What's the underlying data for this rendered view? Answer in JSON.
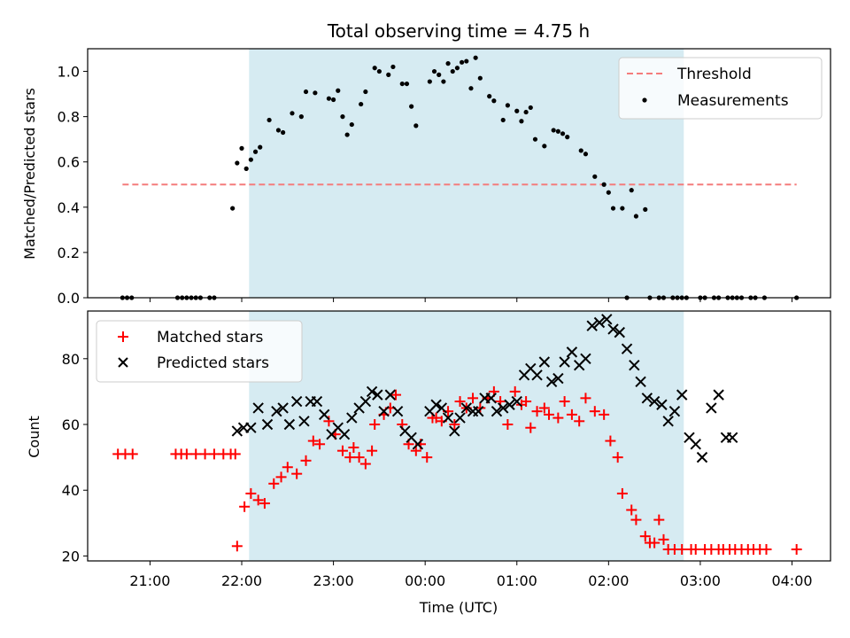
{
  "chart_data": [
    {
      "type": "scatter",
      "title": "Total observing time = 4.75 h",
      "ylabel": "Matched/Predicted stars",
      "xlabel": "",
      "x_unit": "hours since 00:00 UTC",
      "xlim": [
        -3.68,
        4.42
      ],
      "ylim": [
        0.0,
        1.1
      ],
      "yticks": [
        0.0,
        0.2,
        0.4,
        0.6,
        0.8,
        1.0
      ],
      "ytick_labels": [
        "0.0",
        "0.2",
        "0.4",
        "0.6",
        "0.8",
        "1.0"
      ],
      "grid": false,
      "legend_position": "top-right",
      "observing_window": [
        -1.92,
        2.82
      ],
      "threshold": {
        "name": "Threshold",
        "value": 0.5,
        "x_range": [
          -3.3,
          4.05
        ],
        "color": "#f47c7c"
      },
      "series": [
        {
          "name": "Measurements",
          "color": "#000000",
          "marker": "dot",
          "x": [
            -3.3,
            -3.25,
            -3.2,
            -2.7,
            -2.65,
            -2.6,
            -2.55,
            -2.5,
            -2.45,
            -2.35,
            -2.3,
            -2.1,
            -2.05,
            -2.0,
            -1.95,
            -1.9,
            -1.85,
            -1.8,
            -1.7,
            -1.6,
            -1.55,
            -1.45,
            -1.35,
            -1.3,
            -1.2,
            -1.05,
            -1.0,
            -0.95,
            -0.9,
            -0.85,
            -0.8,
            -0.7,
            -0.65,
            -0.55,
            -0.5,
            -0.4,
            -0.35,
            -0.25,
            -0.2,
            -0.15,
            -0.1,
            0.05,
            0.1,
            0.15,
            0.2,
            0.25,
            0.3,
            0.35,
            0.4,
            0.45,
            0.5,
            0.55,
            0.6,
            0.7,
            0.75,
            0.85,
            0.9,
            1.0,
            1.05,
            1.1,
            1.15,
            1.2,
            1.3,
            1.4,
            1.45,
            1.5,
            1.55,
            1.7,
            1.75,
            1.85,
            1.95,
            2.0,
            2.05,
            2.15,
            2.2,
            2.25,
            2.3,
            2.4,
            2.45,
            2.55,
            2.6,
            2.7,
            2.75,
            2.8,
            2.85,
            3.0,
            3.05,
            3.15,
            3.2,
            3.3,
            3.35,
            3.4,
            3.45,
            3.55,
            3.6,
            3.7,
            4.05
          ],
          "y": [
            0.0,
            0.0,
            0.0,
            0.0,
            0.0,
            0.0,
            0.0,
            0.0,
            0.0,
            0.0,
            0.0,
            0.395,
            0.595,
            0.66,
            0.57,
            0.61,
            0.645,
            0.665,
            0.785,
            0.74,
            0.73,
            0.815,
            0.8,
            0.91,
            0.905,
            0.88,
            0.875,
            0.915,
            0.8,
            0.72,
            0.765,
            0.855,
            0.91,
            1.015,
            1.0,
            0.985,
            1.02,
            0.945,
            0.945,
            0.845,
            0.76,
            0.955,
            1.0,
            0.985,
            0.955,
            1.035,
            1.0,
            1.015,
            1.04,
            1.045,
            0.925,
            1.06,
            0.97,
            0.89,
            0.87,
            0.785,
            0.85,
            0.825,
            0.78,
            0.82,
            0.84,
            0.7,
            0.67,
            0.74,
            0.735,
            0.725,
            0.71,
            0.65,
            0.635,
            0.535,
            0.5,
            0.465,
            0.395,
            0.395,
            0.0,
            0.475,
            0.36,
            0.39,
            0.0,
            0.0,
            0.0,
            0.0,
            0.0,
            0.0,
            0.0,
            0.0,
            0.0,
            0.0,
            0.0,
            0.0,
            0.0,
            0.0,
            0.0,
            0.0,
            0.0,
            0.0,
            0.0
          ]
        }
      ]
    },
    {
      "type": "scatter",
      "title": "",
      "ylabel": "Count",
      "xlabel": "Time (UTC)",
      "x_unit": "hours since 00:00 UTC",
      "xlim": [
        -3.68,
        4.42
      ],
      "ylim": [
        18.5,
        94.5
      ],
      "yticks": [
        20,
        40,
        60,
        80
      ],
      "ytick_labels": [
        "20",
        "40",
        "60",
        "80"
      ],
      "xticks": [
        -3,
        -2,
        -1,
        0,
        1,
        2,
        3,
        4
      ],
      "xtick_labels": [
        "21:00",
        "22:00",
        "23:00",
        "00:00",
        "01:00",
        "02:00",
        "03:00",
        "04:00"
      ],
      "grid": false,
      "legend_position": "top-left",
      "observing_window": [
        -1.92,
        2.82
      ],
      "series": [
        {
          "name": "Matched stars",
          "color": "#ff0000",
          "marker": "plus",
          "x": [
            -3.35,
            -3.27,
            -3.19,
            -2.72,
            -2.66,
            -2.6,
            -2.5,
            -2.4,
            -2.3,
            -2.2,
            -2.12,
            -2.07,
            -2.05,
            -1.97,
            -1.9,
            -1.82,
            -1.75,
            -1.65,
            -1.57,
            -1.5,
            -1.4,
            -1.3,
            -1.22,
            -1.15,
            -1.05,
            -0.98,
            -0.9,
            -0.82,
            -0.78,
            -0.72,
            -0.65,
            -0.58,
            -0.55,
            -0.45,
            -0.38,
            -0.32,
            -0.25,
            -0.18,
            -0.1,
            -0.05,
            0.02,
            0.08,
            0.12,
            0.18,
            0.25,
            0.32,
            0.38,
            0.45,
            0.52,
            0.6,
            0.68,
            0.75,
            0.82,
            0.9,
            0.98,
            1.05,
            1.1,
            1.15,
            1.22,
            1.3,
            1.35,
            1.45,
            1.52,
            1.6,
            1.68,
            1.75,
            1.85,
            1.95,
            2.02,
            2.1,
            2.15,
            2.25,
            2.3,
            2.4,
            2.45,
            2.5,
            2.55,
            2.6,
            2.65,
            2.72,
            2.8,
            2.9,
            2.95,
            3.05,
            3.12,
            3.2,
            3.25,
            3.32,
            3.38,
            3.45,
            3.52,
            3.58,
            3.65,
            3.72,
            4.05
          ],
          "y": [
            51,
            51,
            51,
            51,
            51,
            51,
            51,
            51,
            51,
            51,
            51,
            51,
            23,
            35,
            39,
            37,
            36,
            42,
            44,
            47,
            45,
            49,
            55,
            54,
            61,
            57,
            52,
            50,
            53,
            50,
            48,
            52,
            60,
            63,
            65,
            69,
            60,
            54,
            52,
            54,
            50,
            62,
            62,
            61,
            64,
            60,
            67,
            65,
            68,
            65,
            68,
            70,
            67,
            60,
            70,
            66,
            67,
            59,
            64,
            65,
            63,
            62,
            67,
            63,
            61,
            68,
            64,
            63,
            55,
            50,
            39,
            34,
            31,
            26,
            24,
            24,
            31,
            25,
            22,
            22,
            22,
            22,
            22,
            22,
            22,
            22,
            22,
            22,
            22,
            22,
            22,
            22,
            22,
            22,
            22
          ],
          "x_clean": true
        },
        {
          "name": "Predicted stars",
          "color": "#000000",
          "marker": "x",
          "x": [
            -2.05,
            -1.98,
            -1.9,
            -1.82,
            -1.72,
            -1.62,
            -1.55,
            -1.48,
            -1.4,
            -1.32,
            -1.25,
            -1.18,
            -1.1,
            -1.02,
            -0.95,
            -0.88,
            -0.8,
            -0.72,
            -0.65,
            -0.58,
            -0.52,
            -0.45,
            -0.38,
            -0.3,
            -0.22,
            -0.15,
            -0.08,
            0.05,
            0.12,
            0.18,
            0.25,
            0.32,
            0.38,
            0.45,
            0.52,
            0.58,
            0.65,
            0.72,
            0.78,
            0.85,
            0.92,
            1.0,
            1.08,
            1.15,
            1.22,
            1.3,
            1.38,
            1.45,
            1.52,
            1.6,
            1.68,
            1.75,
            1.82,
            1.9,
            1.98,
            2.05,
            2.12,
            2.2,
            2.28,
            2.35,
            2.42,
            2.5,
            2.58,
            2.65,
            2.72,
            2.8,
            2.88,
            2.95,
            3.02,
            3.12,
            3.2,
            3.28,
            3.35
          ],
          "y": [
            58,
            59,
            59,
            65,
            60,
            64,
            65,
            60,
            67,
            61,
            67,
            67,
            63,
            57,
            59,
            57,
            62,
            65,
            67,
            70,
            69,
            64,
            69,
            64,
            58,
            56,
            54,
            64,
            66,
            65,
            62,
            58,
            62,
            65,
            64,
            64,
            68,
            68,
            64,
            65,
            66,
            67,
            75,
            77,
            75,
            79,
            73,
            74,
            79,
            82,
            78,
            80,
            90,
            91,
            92,
            89,
            88,
            83,
            78,
            73,
            68,
            67,
            66,
            61,
            64,
            69,
            56,
            54,
            50,
            65,
            69,
            56,
            56
          ]
        }
      ]
    }
  ],
  "legend": {
    "top": [
      "Threshold",
      "Measurements"
    ],
    "bottom": [
      "Matched stars",
      "Predicted stars"
    ]
  }
}
